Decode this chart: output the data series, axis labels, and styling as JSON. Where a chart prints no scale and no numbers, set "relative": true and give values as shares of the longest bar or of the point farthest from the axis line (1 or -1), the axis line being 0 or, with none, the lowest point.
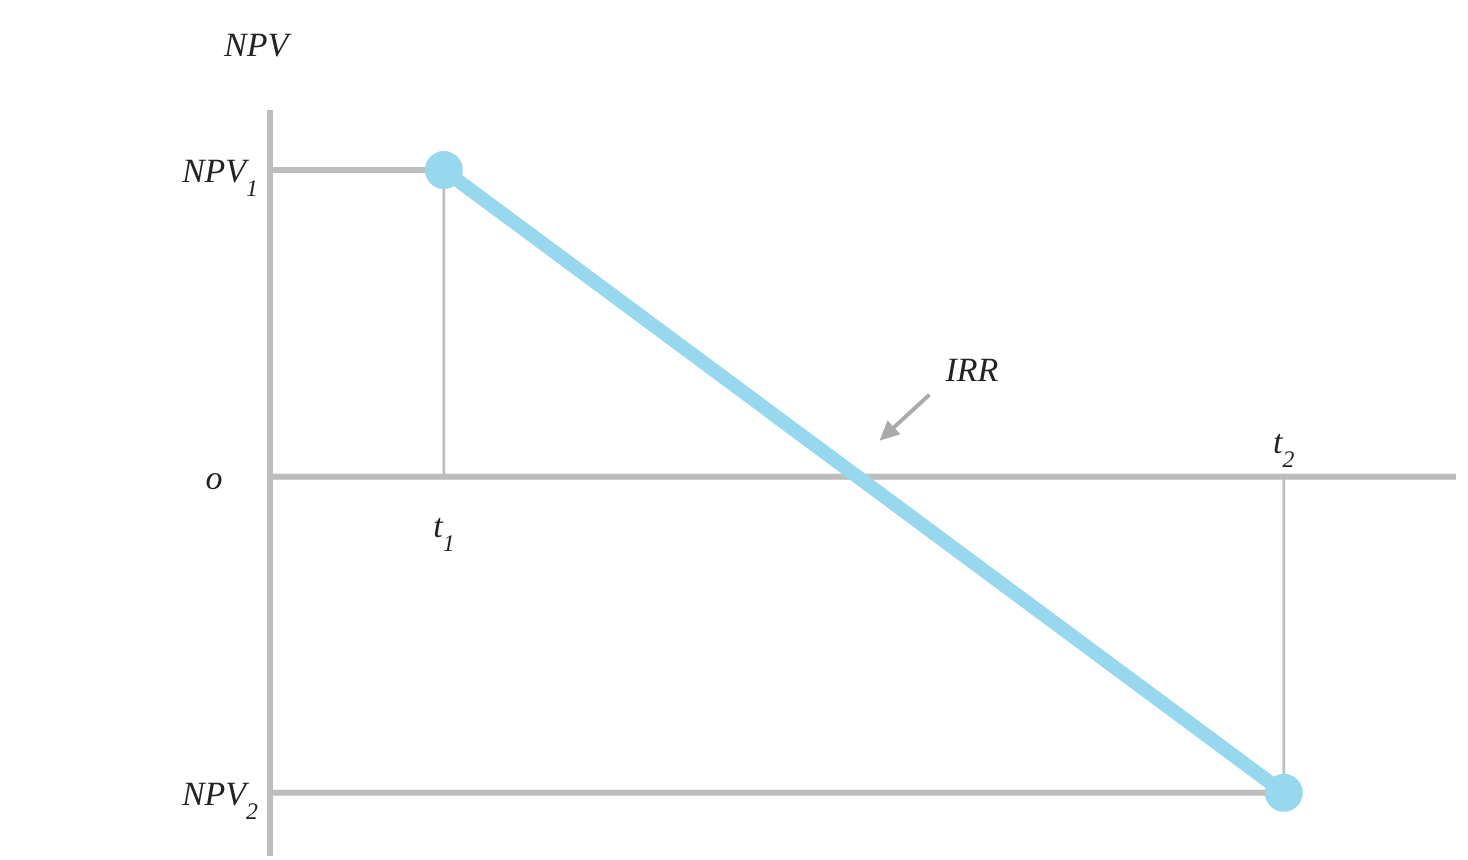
{
  "chart_data": {
    "type": "line",
    "ylabel": "NPV",
    "categories": [
      "t$_{1}$",
      "t$_{2}$"
    ],
    "relative": true,
    "series": [
      {
        "color": "#98d8ef",
        "values": [
          0.97,
          -1
        ]
      }
    ],
    "marker": "circle",
    "ref_lines": [
      {
        "axis": "y",
        "value": 0.97,
        "label": "NPV$_{1}$"
      },
      {
        "axis": "y",
        "value": -1,
        "label": "NPV$_{2}$"
      }
    ],
    "annotations": [
      "o",
      "IRR"
    ]
  }
}
